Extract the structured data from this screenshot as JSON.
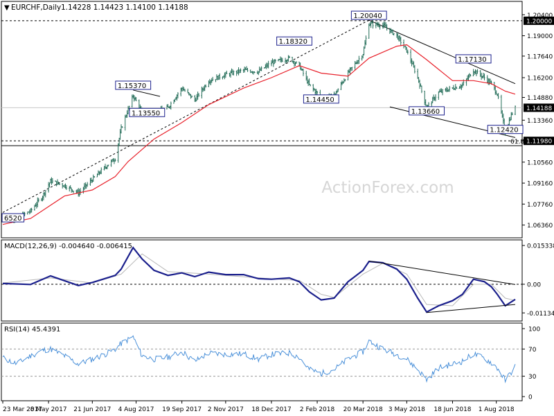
{
  "header": {
    "symbol": "EURCHF,Daily",
    "ohlc": "1.14228 1.14423 1.14100 1.14188"
  },
  "watermark": "ActionForex.com",
  "colors": {
    "candle": "#1f6a55",
    "ma": "#e8202a",
    "macd": "#1a1f8c",
    "signal": "#b8b8b8",
    "rsi": "#4a90d9",
    "trendline": "#000000",
    "label_border": "#1a1f8c",
    "price_tag_bg": "#000000",
    "price_tag_fg": "#ffffff"
  },
  "chart_data": [
    {
      "type": "candlestick",
      "title": "EURCHF,Daily",
      "ylim": [
        1.056,
        1.212
      ],
      "y_ticks": [
        "1.20400",
        "1.19000",
        "1.17640",
        "1.16200",
        "1.14880",
        "1.13360",
        "1.12000",
        "1.10560",
        "1.09160",
        "1.07760",
        "1.06360"
      ],
      "current_price": "1.14188",
      "levels": [
        {
          "value": 1.2,
          "label": "1.20000",
          "style": "dashed"
        },
        {
          "value": 1.1198,
          "label": "1.11980",
          "style": "dashed"
        },
        {
          "value": 1.1166,
          "label": "",
          "style": "solid"
        }
      ],
      "fib_label": "61.8",
      "annotations": [
        {
          "label": "1.20040",
          "value": 1.2004,
          "date": "2018-03-26"
        },
        {
          "label": "1.18320",
          "value": 1.1832,
          "date": "2018-01-10"
        },
        {
          "label": "1.15370",
          "value": 1.1537,
          "date": "2017-08-01"
        },
        {
          "label": "1.13550",
          "value": 1.1355,
          "date": "2017-08-15"
        },
        {
          "label": "1.14450",
          "value": 1.1445,
          "date": "2018-02-06"
        },
        {
          "label": "1.13660",
          "value": 1.1366,
          "date": "2018-05-23"
        },
        {
          "label": "1.17130",
          "value": 1.1713,
          "date": "2018-07-09"
        },
        {
          "label": "1.12420",
          "value": 1.1242,
          "date": "2018-08-10"
        },
        {
          "label": "6520",
          "value": 1.0652,
          "date": "2017-03-23"
        }
      ],
      "close_path": [
        [
          "2017-03-23",
          1.069
        ],
        [
          "2017-04-06",
          1.068
        ],
        [
          "2017-04-20",
          1.073
        ],
        [
          "2017-05-02",
          1.083
        ],
        [
          "2017-05-10",
          1.093
        ],
        [
          "2017-05-24",
          1.09
        ],
        [
          "2017-06-07",
          1.085
        ],
        [
          "2017-06-21",
          1.094
        ],
        [
          "2017-07-05",
          1.103
        ],
        [
          "2017-07-14",
          1.108
        ],
        [
          "2017-07-20",
          1.128
        ],
        [
          "2017-08-01",
          1.15
        ],
        [
          "2017-08-10",
          1.139
        ],
        [
          "2017-08-22",
          1.138
        ],
        [
          "2017-09-05",
          1.142
        ],
        [
          "2017-09-19",
          1.155
        ],
        [
          "2017-10-02",
          1.147
        ],
        [
          "2017-10-16",
          1.16
        ],
        [
          "2017-11-02",
          1.164
        ],
        [
          "2017-11-20",
          1.167
        ],
        [
          "2017-12-05",
          1.166
        ],
        [
          "2017-12-18",
          1.172
        ],
        [
          "2018-01-05",
          1.175
        ],
        [
          "2018-01-15",
          1.17
        ],
        [
          "2018-01-25",
          1.157
        ],
        [
          "2018-02-06",
          1.149
        ],
        [
          "2018-02-19",
          1.15
        ],
        [
          "2018-03-05",
          1.165
        ],
        [
          "2018-03-20",
          1.178
        ],
        [
          "2018-03-26",
          1.198
        ],
        [
          "2018-04-09",
          1.197
        ],
        [
          "2018-04-23",
          1.19
        ],
        [
          "2018-05-03",
          1.18
        ],
        [
          "2018-05-14",
          1.162
        ],
        [
          "2018-05-23",
          1.142
        ],
        [
          "2018-06-04",
          1.152
        ],
        [
          "2018-06-18",
          1.155
        ],
        [
          "2018-06-28",
          1.157
        ],
        [
          "2018-07-09",
          1.167
        ],
        [
          "2018-07-20",
          1.162
        ],
        [
          "2018-07-27",
          1.158
        ],
        [
          "2018-08-02",
          1.151
        ],
        [
          "2018-08-10",
          1.126
        ],
        [
          "2018-08-16",
          1.137
        ],
        [
          "2018-08-20",
          1.1419
        ]
      ],
      "ma_path": [
        [
          "2017-03-23",
          1.064
        ],
        [
          "2017-04-20",
          1.068
        ],
        [
          "2017-05-24",
          1.083
        ],
        [
          "2017-06-21",
          1.087
        ],
        [
          "2017-07-14",
          1.096
        ],
        [
          "2017-07-27",
          1.106
        ],
        [
          "2017-08-22",
          1.121
        ],
        [
          "2017-09-19",
          1.132
        ],
        [
          "2017-10-16",
          1.144
        ],
        [
          "2017-11-20",
          1.155
        ],
        [
          "2017-12-18",
          1.162
        ],
        [
          "2018-01-15",
          1.17
        ],
        [
          "2018-02-06",
          1.165
        ],
        [
          "2018-03-05",
          1.163
        ],
        [
          "2018-03-26",
          1.175
        ],
        [
          "2018-04-23",
          1.183
        ],
        [
          "2018-05-03",
          1.184
        ],
        [
          "2018-05-23",
          1.174
        ],
        [
          "2018-06-18",
          1.16
        ],
        [
          "2018-07-09",
          1.16
        ],
        [
          "2018-07-27",
          1.158
        ],
        [
          "2018-08-10",
          1.153
        ],
        [
          "2018-08-20",
          1.151
        ]
      ],
      "trendlines": [
        {
          "from": [
            "2017-03-23",
            1.072
          ],
          "to": [
            "2018-03-26",
            1.2004
          ],
          "style": "dashed"
        },
        {
          "from": [
            "2017-08-01",
            1.1537
          ],
          "to": [
            "2017-08-28",
            1.1495
          ],
          "style": "solid"
        },
        {
          "from": [
            "2018-03-26",
            1.2004
          ],
          "to": [
            "2018-08-20",
            1.158
          ],
          "style": "solid"
        },
        {
          "from": [
            "2018-04-16",
            1.1425
          ],
          "to": [
            "2018-08-20",
            1.122
          ],
          "style": "solid"
        }
      ],
      "x_ticks": [
        "23 Mar 2017",
        "8 May 2017",
        "21 Jun 2017",
        "4 Aug 2017",
        "19 Sep 2017",
        "2 Nov 2017",
        "18 Dec 2017",
        "2 Feb 2018",
        "20 Mar 2018",
        "3 May 2018",
        "18 Jun 2018",
        "1 Aug 2018"
      ]
    },
    {
      "type": "line",
      "title": "MACD(12,26,9) -0.004640 -0.006415",
      "ylim": [
        -0.014,
        0.017
      ],
      "y_ticks": [
        "0.015338",
        "0.00",
        "-0.011344"
      ],
      "macd": [
        [
          "2017-03-23",
          0.0003
        ],
        [
          "2017-04-20",
          -0.0001
        ],
        [
          "2017-05-10",
          0.0033
        ],
        [
          "2017-06-07",
          -0.0005
        ],
        [
          "2017-06-21",
          0.0007
        ],
        [
          "2017-07-14",
          0.0035
        ],
        [
          "2017-07-20",
          0.006
        ],
        [
          "2017-08-01",
          0.0145
        ],
        [
          "2017-08-10",
          0.01
        ],
        [
          "2017-08-22",
          0.0055
        ],
        [
          "2017-09-05",
          0.0035
        ],
        [
          "2017-09-19",
          0.0045
        ],
        [
          "2017-10-02",
          0.003
        ],
        [
          "2017-10-16",
          0.0048
        ],
        [
          "2017-11-02",
          0.0038
        ],
        [
          "2017-11-20",
          0.0038
        ],
        [
          "2017-12-05",
          0.0022
        ],
        [
          "2017-12-18",
          0.002
        ],
        [
          "2018-01-05",
          0.0025
        ],
        [
          "2018-01-15",
          0.001
        ],
        [
          "2018-01-25",
          -0.003
        ],
        [
          "2018-02-06",
          -0.0062
        ],
        [
          "2018-02-19",
          -0.0055
        ],
        [
          "2018-03-05",
          0.001
        ],
        [
          "2018-03-20",
          0.0055
        ],
        [
          "2018-03-26",
          0.009
        ],
        [
          "2018-04-09",
          0.0085
        ],
        [
          "2018-04-23",
          0.006
        ],
        [
          "2018-05-03",
          0.002
        ],
        [
          "2018-05-14",
          -0.0055
        ],
        [
          "2018-05-23",
          -0.011
        ],
        [
          "2018-06-04",
          -0.0085
        ],
        [
          "2018-06-18",
          -0.0065
        ],
        [
          "2018-06-28",
          -0.004
        ],
        [
          "2018-07-09",
          0.002
        ],
        [
          "2018-07-20",
          0.001
        ],
        [
          "2018-07-27",
          -0.001
        ],
        [
          "2018-08-02",
          -0.004
        ],
        [
          "2018-08-10",
          -0.0085
        ],
        [
          "2018-08-20",
          -0.006
        ]
      ],
      "signal": [
        [
          "2017-03-23",
          0.0005
        ],
        [
          "2017-05-10",
          0.0025
        ],
        [
          "2017-06-21",
          0.0005
        ],
        [
          "2017-07-20",
          0.004
        ],
        [
          "2017-08-10",
          0.012
        ],
        [
          "2017-09-05",
          0.005
        ],
        [
          "2017-10-16",
          0.004
        ],
        [
          "2017-12-05",
          0.0025
        ],
        [
          "2018-01-15",
          0.0015
        ],
        [
          "2018-02-06",
          -0.004
        ],
        [
          "2018-02-19",
          -0.0052
        ],
        [
          "2018-03-20",
          0.004
        ],
        [
          "2018-04-09",
          0.0083
        ],
        [
          "2018-05-03",
          0.004
        ],
        [
          "2018-05-23",
          -0.008
        ],
        [
          "2018-06-18",
          -0.0085
        ],
        [
          "2018-07-09",
          0.0
        ],
        [
          "2018-07-27",
          0.0
        ],
        [
          "2018-08-10",
          -0.0055
        ],
        [
          "2018-08-20",
          -0.0064
        ]
      ],
      "trendlines": [
        {
          "from": [
            "2018-03-26",
            0.0092
          ],
          "to": [
            "2018-08-20",
            -0.0001
          ]
        },
        {
          "from": [
            "2018-05-23",
            -0.0112
          ],
          "to": [
            "2018-08-20",
            -0.008
          ]
        }
      ]
    },
    {
      "type": "line",
      "title": "RSI(14) 45.4391",
      "ylim": [
        0,
        100
      ],
      "y_ticks": [
        "100",
        "70",
        "30",
        "0"
      ],
      "levels": [
        70,
        30
      ],
      "rsi": [
        [
          "2017-03-23",
          57
        ],
        [
          "2017-04-06",
          48
        ],
        [
          "2017-04-20",
          60
        ],
        [
          "2017-05-02",
          68
        ],
        [
          "2017-05-10",
          70
        ],
        [
          "2017-05-24",
          60
        ],
        [
          "2017-06-07",
          48
        ],
        [
          "2017-06-21",
          55
        ],
        [
          "2017-07-05",
          63
        ],
        [
          "2017-07-14",
          70
        ],
        [
          "2017-07-20",
          78
        ],
        [
          "2017-08-01",
          88
        ],
        [
          "2017-08-10",
          60
        ],
        [
          "2017-08-22",
          55
        ],
        [
          "2017-09-05",
          58
        ],
        [
          "2017-09-19",
          66
        ],
        [
          "2017-10-02",
          52
        ],
        [
          "2017-10-16",
          64
        ],
        [
          "2017-11-02",
          62
        ],
        [
          "2017-11-20",
          63
        ],
        [
          "2017-12-05",
          55
        ],
        [
          "2017-12-18",
          62
        ],
        [
          "2018-01-05",
          64
        ],
        [
          "2018-01-15",
          58
        ],
        [
          "2018-01-25",
          40
        ],
        [
          "2018-02-06",
          34
        ],
        [
          "2018-02-19",
          40
        ],
        [
          "2018-03-05",
          55
        ],
        [
          "2018-03-20",
          66
        ],
        [
          "2018-03-26",
          82
        ],
        [
          "2018-04-09",
          70
        ],
        [
          "2018-04-23",
          62
        ],
        [
          "2018-05-03",
          55
        ],
        [
          "2018-05-14",
          40
        ],
        [
          "2018-05-23",
          25
        ],
        [
          "2018-06-04",
          42
        ],
        [
          "2018-06-18",
          48
        ],
        [
          "2018-06-28",
          52
        ],
        [
          "2018-07-09",
          63
        ],
        [
          "2018-07-20",
          56
        ],
        [
          "2018-07-27",
          50
        ],
        [
          "2018-08-02",
          42
        ],
        [
          "2018-08-10",
          24
        ],
        [
          "2018-08-16",
          36
        ],
        [
          "2018-08-20",
          45.4
        ]
      ]
    }
  ]
}
